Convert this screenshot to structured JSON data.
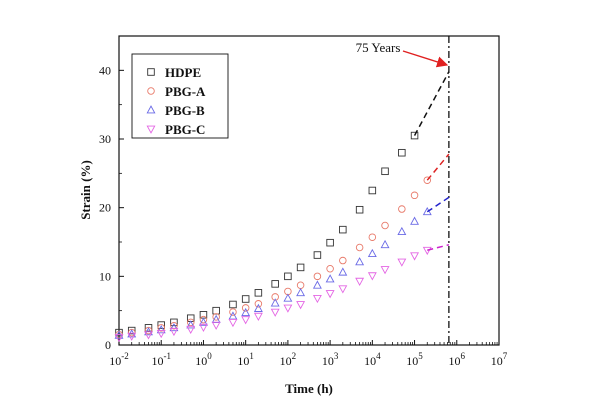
{
  "chart_data": {
    "type": "scatter",
    "title": "",
    "xlabel": "Time (h)",
    "ylabel": "Strain (%)",
    "xscale": "log",
    "xlim": [
      0.01,
      10000000
    ],
    "ylim": [
      0,
      45
    ],
    "x_ticks": [
      {
        "base": "10",
        "exp": "-2"
      },
      {
        "base": "10",
        "exp": "-1"
      },
      {
        "base": "10",
        "exp": "0"
      },
      {
        "base": "10",
        "exp": "1"
      },
      {
        "base": "10",
        "exp": "2"
      },
      {
        "base": "10",
        "exp": "3"
      },
      {
        "base": "10",
        "exp": "4"
      },
      {
        "base": "10",
        "exp": "5"
      },
      {
        "base": "10",
        "exp": "6"
      },
      {
        "base": "10",
        "exp": "7"
      }
    ],
    "y_ticks": [
      "0",
      "10",
      "20",
      "30",
      "40"
    ],
    "legend_position": "top-left",
    "series": [
      {
        "name": "HDPE",
        "marker": "square",
        "color": "#333333",
        "extrapolation_color": "#111111",
        "x": [
          0.01,
          0.02,
          0.05,
          0.1,
          0.2,
          0.5,
          1,
          2,
          5,
          10,
          20,
          50,
          100,
          200,
          500,
          1000,
          2000,
          5000,
          10000,
          20000,
          50000,
          100000
        ],
        "y": [
          1.8,
          2.1,
          2.5,
          2.9,
          3.3,
          3.9,
          4.4,
          5.0,
          5.9,
          6.7,
          7.6,
          8.9,
          10.0,
          11.3,
          13.1,
          14.9,
          16.8,
          19.7,
          22.5,
          25.3,
          28.0,
          30.5
        ],
        "extrapolation": {
          "x": [
            100000,
            650000
          ],
          "y": [
            30.5,
            39.8
          ]
        }
      },
      {
        "name": "PBG-A",
        "marker": "circle",
        "color": "#e87a6a",
        "extrapolation_color": "#dd2222",
        "x": [
          0.01,
          0.02,
          0.05,
          0.1,
          0.2,
          0.5,
          1,
          2,
          5,
          10,
          20,
          50,
          100,
          200,
          500,
          1000,
          2000,
          5000,
          10000,
          20000,
          50000,
          100000,
          200000
        ],
        "y": [
          1.5,
          1.8,
          2.1,
          2.5,
          2.8,
          3.3,
          3.7,
          4.1,
          4.8,
          5.4,
          6.0,
          7.0,
          7.8,
          8.7,
          10.0,
          11.1,
          12.3,
          14.2,
          15.7,
          17.4,
          19.8,
          21.8,
          24.0
        ],
        "extrapolation": {
          "x": [
            200000,
            650000
          ],
          "y": [
            24.0,
            27.8
          ]
        }
      },
      {
        "name": "PBG-B",
        "marker": "triangle-up",
        "color": "#6a6ae6",
        "extrapolation_color": "#2222cc",
        "x": [
          0.01,
          0.02,
          0.05,
          0.1,
          0.2,
          0.5,
          1,
          2,
          5,
          10,
          20,
          50,
          100,
          200,
          500,
          1000,
          2000,
          5000,
          10000,
          20000,
          50000,
          100000,
          200000
        ],
        "y": [
          1.4,
          1.6,
          1.9,
          2.2,
          2.5,
          2.9,
          3.3,
          3.7,
          4.2,
          4.7,
          5.3,
          6.1,
          6.8,
          7.6,
          8.7,
          9.6,
          10.6,
          12.1,
          13.3,
          14.6,
          16.5,
          18.0,
          19.4
        ],
        "extrapolation": {
          "x": [
            200000,
            650000
          ],
          "y": [
            19.4,
            21.5
          ]
        }
      },
      {
        "name": "PBG-C",
        "marker": "triangle-down",
        "color": "#e466e4",
        "extrapolation_color": "#cc22cc",
        "x": [
          0.01,
          0.02,
          0.05,
          0.1,
          0.2,
          0.5,
          1,
          2,
          5,
          10,
          20,
          50,
          100,
          200,
          500,
          1000,
          2000,
          5000,
          10000,
          20000,
          50000,
          100000,
          200000
        ],
        "y": [
          1.1,
          1.3,
          1.5,
          1.7,
          2.0,
          2.3,
          2.6,
          2.9,
          3.3,
          3.7,
          4.2,
          4.8,
          5.4,
          5.9,
          6.8,
          7.5,
          8.2,
          9.3,
          10.1,
          11.0,
          12.1,
          13.0,
          13.8
        ],
        "extrapolation": {
          "x": [
            200000,
            650000
          ],
          "y": [
            13.8,
            14.6
          ]
        }
      }
    ],
    "reference_line": {
      "x": 650000,
      "style": "dash-dot",
      "color": "#111111"
    },
    "annotation": {
      "text": "75 Years",
      "arrow_to": [
        650000,
        40.5
      ],
      "arrow_color": "#e02020"
    }
  }
}
